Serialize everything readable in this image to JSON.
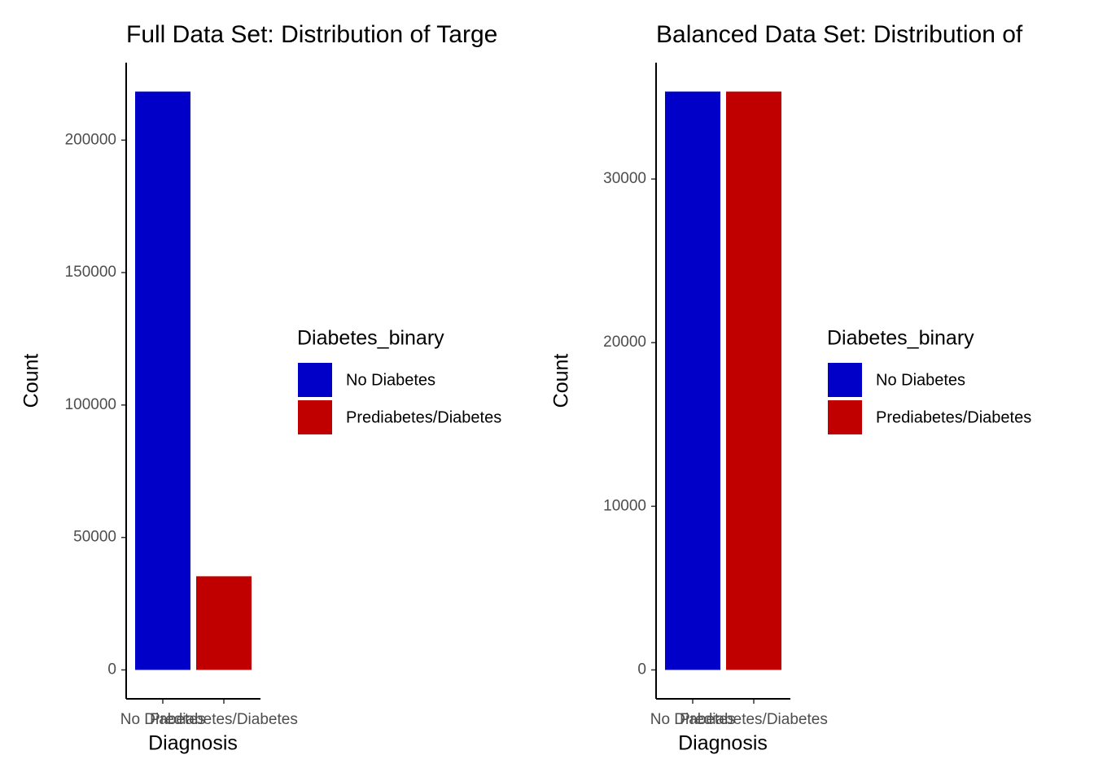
{
  "chart_data": [
    {
      "type": "bar",
      "title": "Full Data Set: Distribution of Targe",
      "x_label": "Diagnosis",
      "y_label": "Count",
      "legend_title": "Diabetes_binary",
      "categories": [
        "No Diabetes",
        "Prediabetes/Diabetes"
      ],
      "values": [
        218334,
        35346
      ],
      "colors": [
        "#0000c8",
        "#c00000"
      ],
      "ylim": [
        -10917,
        229251
      ],
      "yticks": [
        0,
        50000,
        100000,
        150000,
        200000
      ]
    },
    {
      "type": "bar",
      "title": "Balanced Data Set: Distribution of",
      "x_label": "Diagnosis",
      "y_label": "Count",
      "legend_title": "Diabetes_binary",
      "categories": [
        "No Diabetes",
        "Prediabetes/Diabetes"
      ],
      "values": [
        35346,
        35346
      ],
      "colors": [
        "#0000c8",
        "#c00000"
      ],
      "ylim": [
        -1767,
        37113
      ],
      "yticks": [
        0,
        10000,
        20000,
        30000
      ]
    }
  ]
}
